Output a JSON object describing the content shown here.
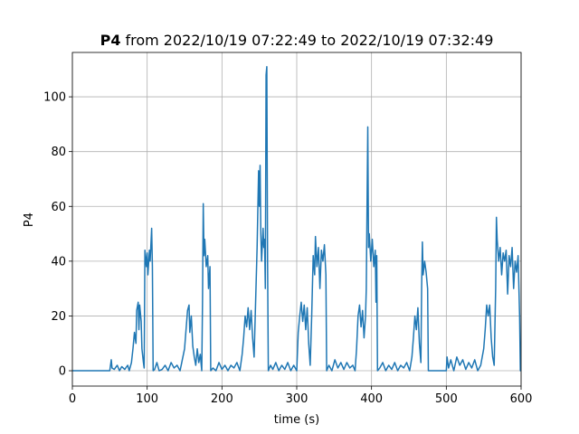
{
  "chart_data": {
    "type": "line",
    "title": {
      "bold": "P4",
      "rest": "from 2022/10/19 07:22:49 to 2022/10/19 07:32:49"
    },
    "x_label": "time (s)",
    "y_label": "P4",
    "xlim": [
      0,
      600
    ],
    "ylim": [
      -5.6,
      116.2
    ],
    "xticks": [
      0,
      100,
      200,
      300,
      400,
      500,
      600
    ],
    "yticks": [
      0,
      20,
      40,
      60,
      80,
      100
    ],
    "grid": true,
    "series": [
      {
        "color": "#1f77b4",
        "x": [
          0,
          50,
          52,
          53,
          56,
          60,
          63,
          66,
          70,
          74,
          76,
          79,
          81,
          83,
          85,
          86,
          88,
          89,
          90,
          92,
          93,
          95,
          96,
          97,
          99,
          100,
          101,
          103,
          104,
          106,
          107,
          108,
          110,
          113,
          116,
          120,
          124,
          128,
          132,
          136,
          140,
          144,
          147,
          150,
          152,
          154,
          156,
          157,
          159,
          161,
          163,
          165,
          167,
          169,
          171,
          173,
          174,
          175,
          176,
          177,
          179,
          181,
          182,
          184,
          185,
          188,
          192,
          196,
          200,
          204,
          208,
          212,
          216,
          220,
          224,
          227,
          229,
          231,
          233,
          235,
          237,
          239,
          241,
          243,
          245,
          247,
          249,
          250,
          251,
          252,
          253,
          255,
          256,
          257,
          258,
          259,
          260,
          261,
          262,
          265,
          268,
          272,
          276,
          280,
          284,
          288,
          292,
          296,
          300,
          302,
          304,
          306,
          308,
          310,
          312,
          314,
          316,
          318,
          320,
          322,
          324,
          325,
          327,
          329,
          331,
          333,
          335,
          337,
          339,
          340,
          343,
          347,
          351,
          355,
          359,
          363,
          367,
          371,
          375,
          378,
          380,
          382,
          384,
          386,
          388,
          390,
          392,
          393,
          394,
          395,
          396,
          397,
          399,
          401,
          403,
          405,
          406,
          407,
          408,
          411,
          415,
          419,
          423,
          427,
          431,
          435,
          439,
          443,
          447,
          451,
          454,
          456,
          458,
          460,
          462,
          464,
          466,
          467,
          468,
          469,
          471,
          473,
          475,
          476,
          480,
          485,
          490,
          495,
          500,
          501,
          503,
          506,
          510,
          514,
          518,
          522,
          526,
          530,
          534,
          538,
          542,
          546,
          548,
          550,
          552,
          554,
          556,
          558,
          560,
          562,
          564,
          566,
          567,
          568,
          570,
          572,
          574,
          576,
          578,
          580,
          582,
          584,
          586,
          588,
          590,
          592,
          594,
          596,
          598,
          599,
          600
        ],
        "values": [
          0,
          0,
          4,
          1,
          0.5,
          2,
          0,
          1.5,
          0.5,
          2,
          0,
          3,
          8,
          14,
          10,
          22,
          25,
          15,
          24,
          18,
          8,
          3,
          1,
          44,
          38,
          43,
          35,
          44,
          40,
          52,
          38,
          0,
          0.5,
          3,
          0,
          0.5,
          2,
          0,
          3,
          1,
          2,
          0,
          4,
          8,
          15,
          22,
          24,
          14,
          20,
          9,
          5,
          2,
          8,
          3,
          6,
          0,
          25,
          61,
          42,
          48,
          38,
          42,
          30,
          38,
          0,
          1,
          0,
          3,
          0.5,
          2,
          0,
          2,
          1,
          3,
          0,
          6,
          12,
          20,
          16,
          23,
          15,
          22,
          12,
          5,
          25,
          45,
          73,
          60,
          75,
          50,
          40,
          52,
          45,
          48,
          30,
          108,
          111,
          40,
          0,
          2,
          0.5,
          3,
          0,
          2,
          0.5,
          3,
          0,
          2,
          0,
          14,
          20,
          25,
          18,
          24,
          15,
          23,
          10,
          2,
          20,
          42,
          35,
          49,
          38,
          45,
          30,
          44,
          40,
          46,
          35,
          0,
          2,
          0,
          4,
          1,
          3,
          0.5,
          3,
          1,
          2,
          0,
          8,
          20,
          24,
          16,
          22,
          12,
          20,
          30,
          60,
          89,
          45,
          50,
          40,
          48,
          38,
          44,
          25,
          42,
          0,
          1,
          3,
          0,
          2,
          0.5,
          3,
          0,
          2,
          1,
          3,
          0,
          5,
          12,
          20,
          15,
          23,
          10,
          3,
          30,
          47,
          35,
          40,
          36,
          30,
          0,
          0,
          0,
          0,
          0,
          0,
          5,
          1,
          4,
          0,
          5,
          2,
          4,
          0.5,
          3,
          1,
          4,
          0,
          2,
          5,
          8,
          15,
          24,
          20,
          24,
          12,
          5,
          2,
          30,
          56,
          48,
          40,
          45,
          35,
          43,
          40,
          44,
          28,
          42,
          38,
          45,
          30,
          40,
          36,
          42,
          20,
          0,
          0
        ]
      }
    ]
  }
}
